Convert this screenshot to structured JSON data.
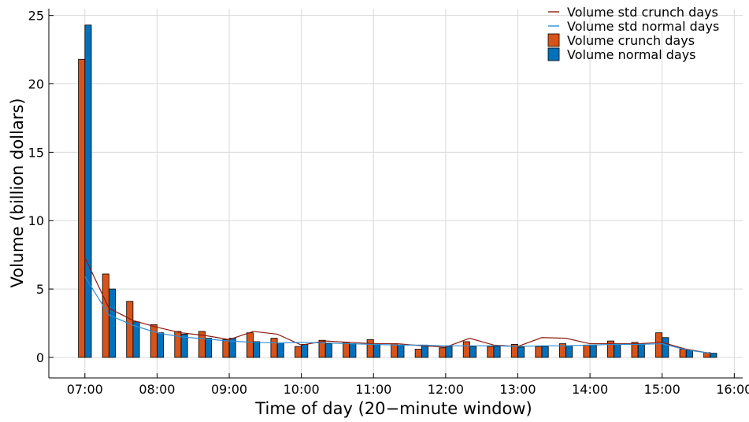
{
  "chart_data": {
    "type": "bar",
    "xlabel": "Time of day (20−minute window)",
    "ylabel": "Volume (billion dollars)",
    "ylim": [
      -1.5,
      25.5
    ],
    "yticks": [
      0,
      5,
      10,
      15,
      20,
      25
    ],
    "xlim": [
      390,
      967
    ],
    "xticks": [
      {
        "value": 420,
        "label": "07:00"
      },
      {
        "value": 480,
        "label": "08:00"
      },
      {
        "value": 540,
        "label": "09:00"
      },
      {
        "value": 600,
        "label": "10:00"
      },
      {
        "value": 660,
        "label": "11:00"
      },
      {
        "value": 720,
        "label": "12:00"
      },
      {
        "value": 780,
        "label": "13:00"
      },
      {
        "value": 840,
        "label": "14:00"
      },
      {
        "value": 900,
        "label": "15:00"
      },
      {
        "value": 960,
        "label": "16:00"
      }
    ],
    "grid": true,
    "legend_position": "top-right",
    "x_minutes": [
      420,
      440,
      460,
      480,
      500,
      520,
      540,
      560,
      580,
      600,
      620,
      640,
      660,
      680,
      700,
      720,
      740,
      760,
      780,
      800,
      820,
      840,
      860,
      880,
      900,
      920,
      940
    ],
    "bar_series": [
      {
        "name": "Volume crunch days",
        "color": "#d95319",
        "values": [
          21.8,
          6.1,
          4.1,
          2.4,
          1.9,
          1.9,
          1.3,
          1.8,
          1.4,
          0.8,
          1.25,
          1.1,
          1.3,
          1.0,
          0.6,
          0.7,
          1.15,
          0.8,
          0.95,
          0.8,
          1.0,
          0.9,
          1.2,
          1.1,
          1.8,
          0.6,
          0.35
        ]
      },
      {
        "name": "Volume normal days",
        "color": "#0072bd",
        "values": [
          24.3,
          5.0,
          2.6,
          1.8,
          1.7,
          1.4,
          1.4,
          1.15,
          1.05,
          0.95,
          1.0,
          1.0,
          0.95,
          0.9,
          0.9,
          0.8,
          0.8,
          0.8,
          0.75,
          0.8,
          0.85,
          0.9,
          1.0,
          1.0,
          1.45,
          0.5,
          0.3
        ]
      }
    ],
    "line_series": [
      {
        "name": "Volume std crunch days",
        "color": "#8b1a0e",
        "values": [
          7.3,
          3.6,
          2.7,
          2.2,
          1.8,
          1.6,
          1.3,
          1.9,
          1.7,
          0.9,
          1.2,
          1.1,
          1.0,
          1.0,
          0.85,
          0.75,
          1.4,
          0.9,
          0.8,
          1.45,
          1.4,
          1.0,
          1.0,
          1.0,
          1.1,
          0.6,
          0.3
        ]
      },
      {
        "name": "Volume std normal days",
        "color": "#2d8fd6",
        "values": [
          5.9,
          3.1,
          2.35,
          1.8,
          1.5,
          1.35,
          1.2,
          1.1,
          1.05,
          1.1,
          1.05,
          1.0,
          0.95,
          0.9,
          0.9,
          0.85,
          0.85,
          0.85,
          0.8,
          0.85,
          0.85,
          0.9,
          0.95,
          0.95,
          1.0,
          0.55,
          0.3
        ]
      }
    ]
  }
}
